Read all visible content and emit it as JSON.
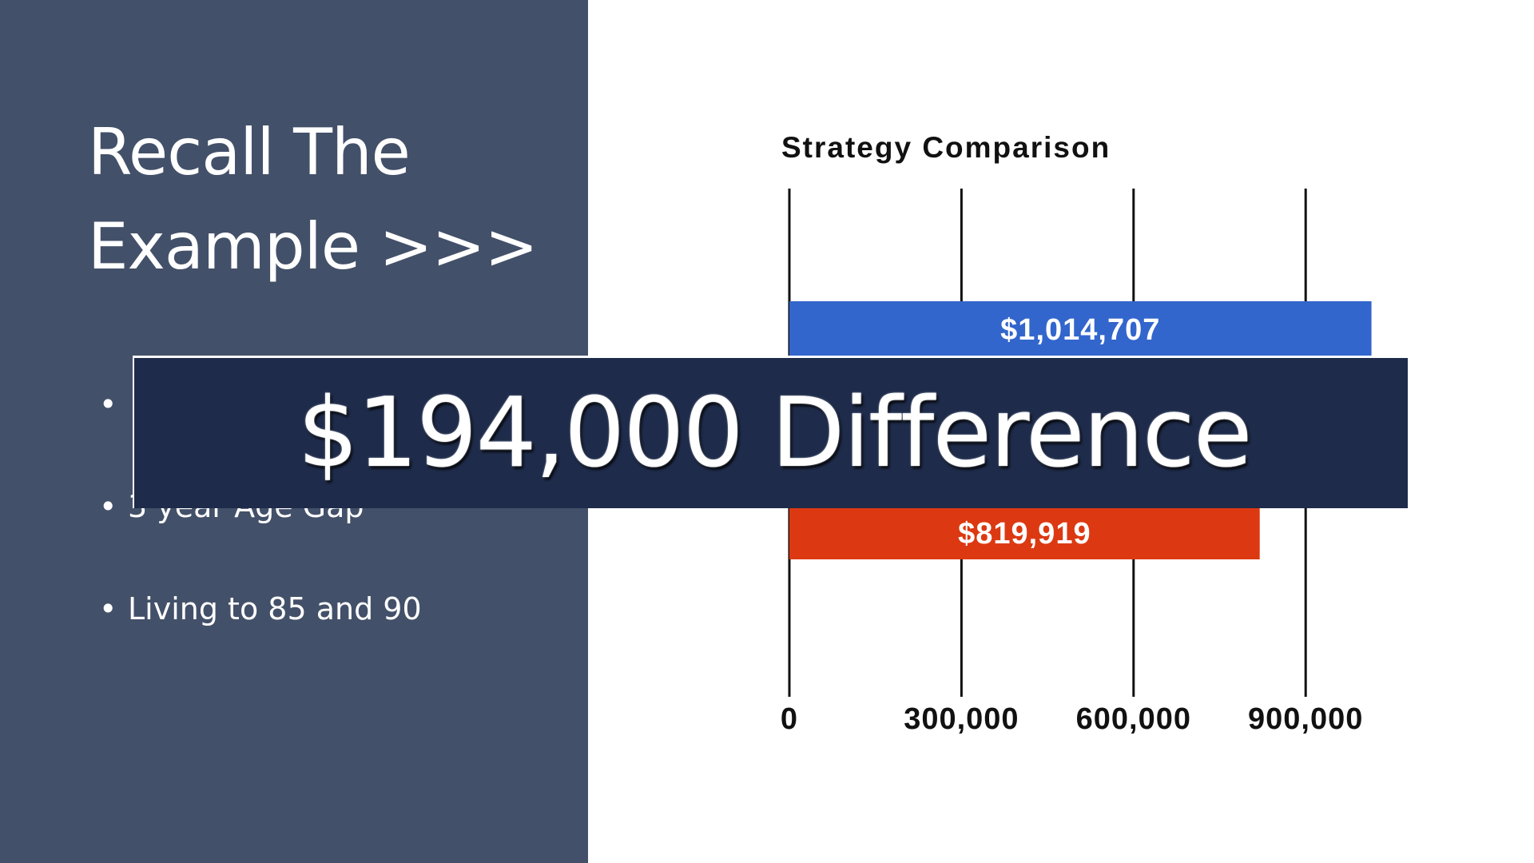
{
  "slide": {
    "title_lines": [
      "Recall The",
      "Example >>>"
    ],
    "bullets": [
      "",
      "3 year Age Gap",
      "Living to 85 and 90"
    ],
    "banner": "$194,000 Difference",
    "colors": {
      "panel": "#435069",
      "banner": "#1e2b4a"
    }
  },
  "chart_data": {
    "type": "bar",
    "orientation": "horizontal",
    "title": "Strategy Comparison",
    "xlim": [
      0,
      1000000
    ],
    "x_ticks": [
      0,
      300000,
      600000,
      900000
    ],
    "x_tick_labels": [
      "0",
      "300,000",
      "600,000",
      "900,000"
    ],
    "grid": true,
    "bars": [
      {
        "value": 1014707,
        "label": "$1,014,707",
        "color": "#3366cc"
      },
      {
        "value": 819919,
        "label": "$819,919",
        "color": "#dc3912"
      }
    ]
  }
}
